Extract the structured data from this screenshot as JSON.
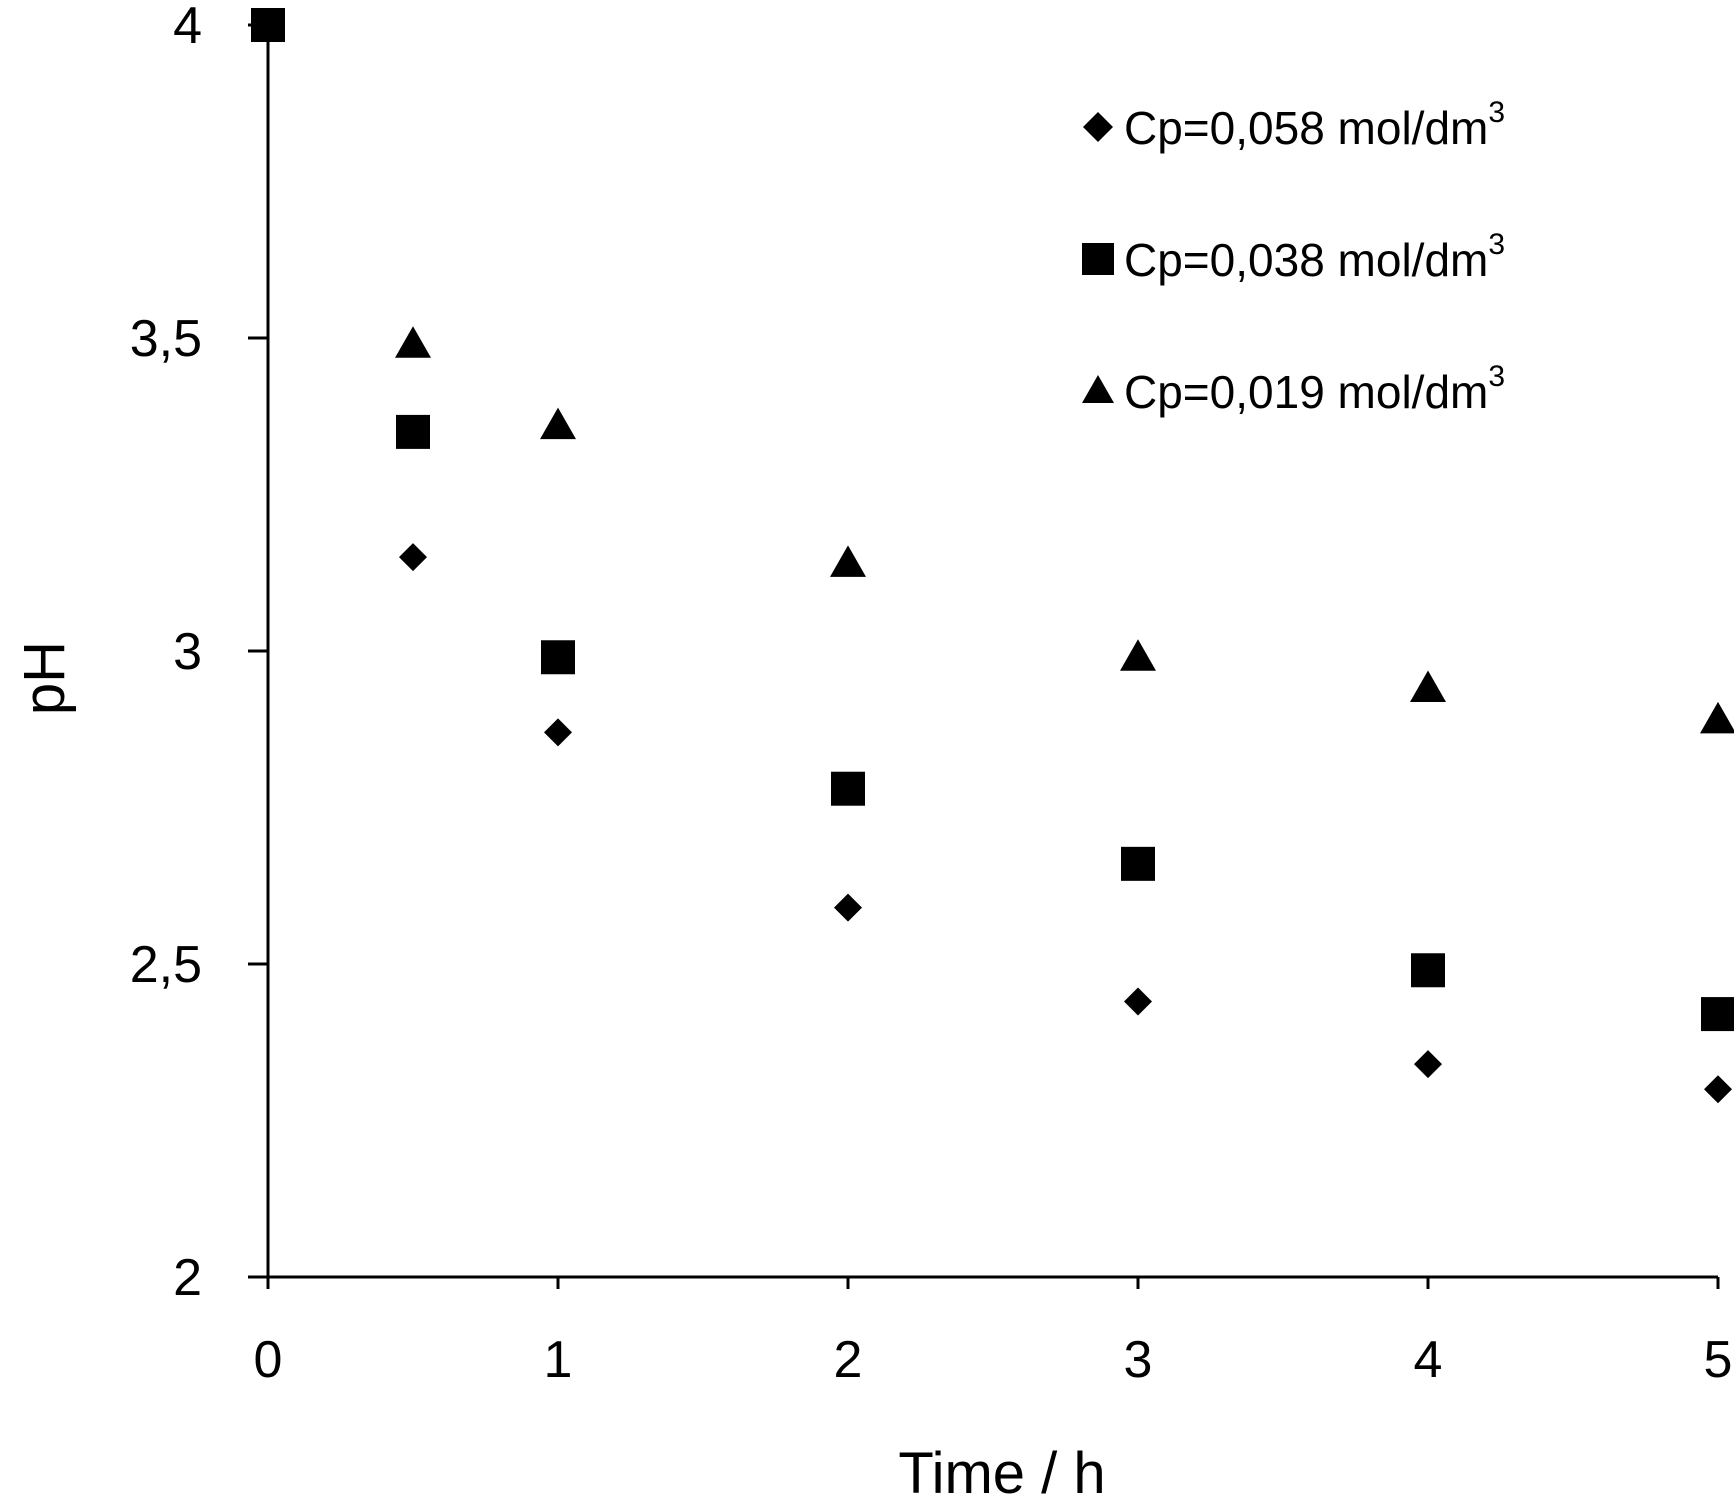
{
  "chart_data": {
    "type": "scatter",
    "title": "",
    "xlabel": "Time / h",
    "ylabel": "pH",
    "xlim": [
      0,
      5
    ],
    "ylim": [
      2,
      4
    ],
    "x_ticks": [
      "0",
      "1",
      "2",
      "3",
      "4",
      "5"
    ],
    "y_ticks": [
      "2",
      "2,5",
      "3",
      "3,5",
      "4"
    ],
    "grid": false,
    "legend_position": "top-right",
    "series": [
      {
        "name": "Cp=0,058 mol/dm3",
        "label_main": "Cp=0,058 mol/dm",
        "label_sup": "3",
        "marker": "diamond",
        "color": "#000000",
        "x": [
          0.5,
          1,
          2,
          3,
          4,
          5
        ],
        "y": [
          3.15,
          2.87,
          2.59,
          2.44,
          2.34,
          2.3
        ]
      },
      {
        "name": "Cp=0,038 mol/dm3",
        "label_main": "Cp=0,038 mol/dm",
        "label_sup": "3",
        "marker": "square",
        "color": "#000000",
        "x": [
          0,
          0.5,
          1,
          2,
          3,
          4,
          5
        ],
        "y": [
          4.0,
          3.35,
          2.99,
          2.78,
          2.66,
          2.49,
          2.42
        ]
      },
      {
        "name": "Cp=0,019 mol/dm3",
        "label_main": "Cp=0,019 mol/dm",
        "label_sup": "3",
        "marker": "triangle",
        "color": "#000000",
        "x": [
          0.5,
          1,
          2,
          3,
          4,
          5
        ],
        "y": [
          3.49,
          3.36,
          3.14,
          2.99,
          2.94,
          2.89
        ]
      }
    ]
  }
}
